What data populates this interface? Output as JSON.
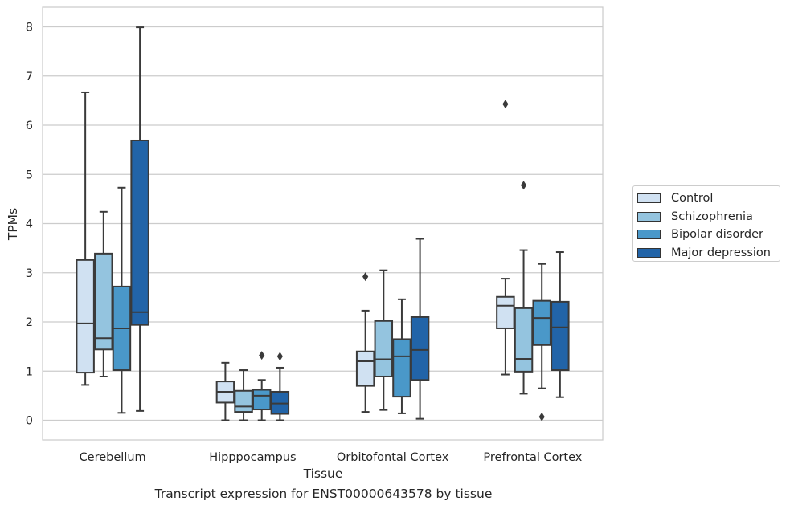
{
  "chart_data": {
    "type": "box",
    "title": "",
    "xlabel": "Tissue",
    "ylabel": "TPMs",
    "caption": "Transcript expression for ENST00000643578 by tissue",
    "ylim": [
      -0.4,
      8.4
    ],
    "yticks": [
      0,
      1,
      2,
      3,
      4,
      5,
      6,
      7,
      8
    ],
    "grid": "horizontal",
    "legend_position": "right",
    "categories": [
      "Cerebellum",
      "Hipppocampus",
      "Orbitofontal Cortex",
      "Prefrontal Cortex"
    ],
    "series": [
      {
        "name": "Control",
        "color": "#d0e1f2",
        "boxes": [
          {
            "whisker_low": 0.72,
            "q1": 0.97,
            "median": 1.97,
            "q3": 3.26,
            "whisker_high": 6.67,
            "outliers": []
          },
          {
            "whisker_low": 0.0,
            "q1": 0.36,
            "median": 0.58,
            "q3": 0.79,
            "whisker_high": 1.17,
            "outliers": []
          },
          {
            "whisker_low": 0.17,
            "q1": 0.7,
            "median": 1.2,
            "q3": 1.4,
            "whisker_high": 2.23,
            "outliers": [
              2.92
            ]
          },
          {
            "whisker_low": 0.93,
            "q1": 1.87,
            "median": 2.33,
            "q3": 2.51,
            "whisker_high": 2.88,
            "outliers": [
              6.43
            ]
          }
        ]
      },
      {
        "name": "Schizophrenia",
        "color": "#94c4df",
        "boxes": [
          {
            "whisker_low": 0.89,
            "q1": 1.44,
            "median": 1.67,
            "q3": 3.39,
            "whisker_high": 4.24,
            "outliers": []
          },
          {
            "whisker_low": 0.0,
            "q1": 0.17,
            "median": 0.28,
            "q3": 0.6,
            "whisker_high": 1.02,
            "outliers": []
          },
          {
            "whisker_low": 0.21,
            "q1": 0.89,
            "median": 1.24,
            "q3": 2.02,
            "whisker_high": 3.05,
            "outliers": []
          },
          {
            "whisker_low": 0.54,
            "q1": 0.99,
            "median": 1.25,
            "q3": 2.28,
            "whisker_high": 3.46,
            "outliers": [
              4.78
            ]
          }
        ]
      },
      {
        "name": "Bipolar disorder",
        "color": "#4a98c9",
        "boxes": [
          {
            "whisker_low": 0.15,
            "q1": 1.02,
            "median": 1.87,
            "q3": 2.72,
            "whisker_high": 4.73,
            "outliers": []
          },
          {
            "whisker_low": 0.0,
            "q1": 0.22,
            "median": 0.5,
            "q3": 0.62,
            "whisker_high": 0.82,
            "outliers": [
              1.32
            ]
          },
          {
            "whisker_low": 0.14,
            "q1": 0.48,
            "median": 1.3,
            "q3": 1.65,
            "whisker_high": 2.46,
            "outliers": []
          },
          {
            "whisker_low": 0.65,
            "q1": 1.53,
            "median": 2.08,
            "q3": 2.43,
            "whisker_high": 3.18,
            "outliers": [
              0.07
            ]
          }
        ]
      },
      {
        "name": "Major depression",
        "color": "#2264a8",
        "boxes": [
          {
            "whisker_low": 0.19,
            "q1": 1.94,
            "median": 2.2,
            "q3": 5.69,
            "whisker_high": 7.99,
            "outliers": []
          },
          {
            "whisker_low": 0.0,
            "q1": 0.13,
            "median": 0.34,
            "q3": 0.58,
            "whisker_high": 1.07,
            "outliers": [
              1.3
            ]
          },
          {
            "whisker_low": 0.03,
            "q1": 0.82,
            "median": 1.43,
            "q3": 2.1,
            "whisker_high": 3.69,
            "outliers": []
          },
          {
            "whisker_low": 0.47,
            "q1": 1.02,
            "median": 1.89,
            "q3": 2.41,
            "whisker_high": 3.42,
            "outliers": []
          }
        ]
      }
    ]
  }
}
